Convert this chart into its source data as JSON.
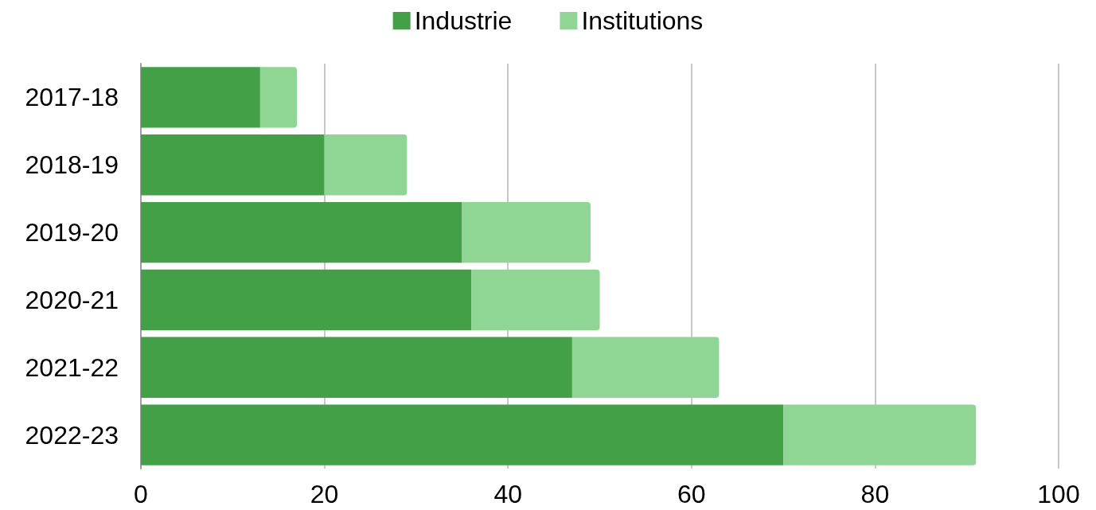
{
  "chart_data": {
    "type": "bar",
    "orientation": "horizontal",
    "stacked": true,
    "categories": [
      "2017-18",
      "2018-19",
      "2019-20",
      "2020-21",
      "2021-22",
      "2022-23"
    ],
    "series": [
      {
        "name": "Industrie",
        "color": "#43a047",
        "values": [
          13,
          20,
          35,
          36,
          47,
          70
        ]
      },
      {
        "name": "Institutions",
        "color": "#8fd694",
        "values": [
          4,
          9,
          14,
          14,
          16,
          21
        ]
      }
    ],
    "xlim": [
      0,
      100
    ],
    "xticks": [
      0,
      20,
      40,
      60,
      80,
      100
    ],
    "grid": "x",
    "legend": "top"
  }
}
